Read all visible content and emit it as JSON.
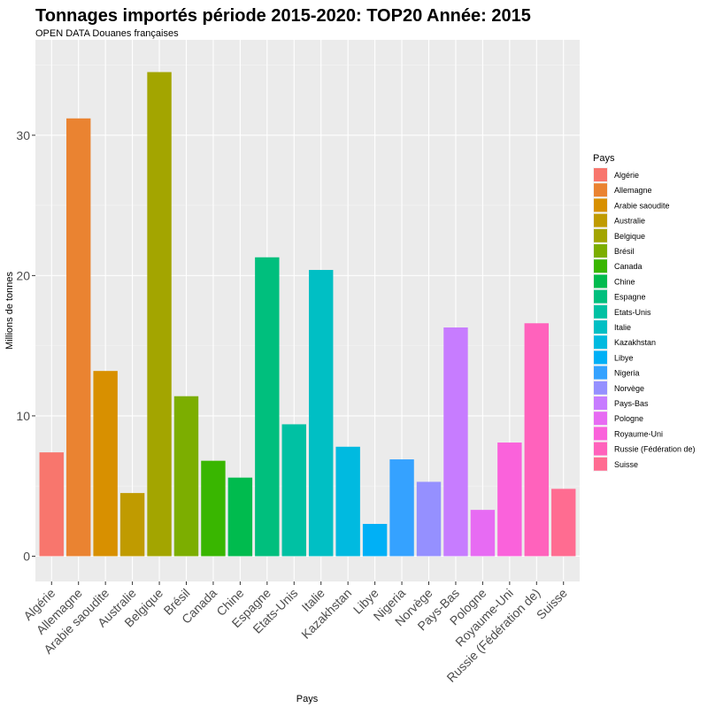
{
  "chart_data": {
    "type": "bar",
    "title": "Tonnages importés période 2015-2020: TOP20 Année: 2015",
    "subtitle": "OPEN DATA Douanes françaises",
    "xlabel": "Pays",
    "ylabel": "Millions de tonnes",
    "ylim": [
      -1.8,
      36.8
    ],
    "y_ticks": [
      0,
      10,
      20,
      30
    ],
    "grid": true,
    "legend_title": "Pays",
    "legend_position": "right",
    "categories": [
      "Algérie",
      "Allemagne",
      "Arabie saoudite",
      "Australie",
      "Belgique",
      "Brésil",
      "Canada",
      "Chine",
      "Espagne",
      "Etats-Unis",
      "Italie",
      "Kazakhstan",
      "Libye",
      "Nigeria",
      "Norvège",
      "Pays-Bas",
      "Pologne",
      "Royaume-Uni",
      "Russie (Fédération de)",
      "Suisse"
    ],
    "values": [
      7.4,
      31.2,
      13.2,
      4.5,
      34.5,
      11.4,
      6.8,
      5.6,
      21.3,
      9.4,
      20.4,
      7.8,
      2.3,
      6.9,
      5.3,
      16.3,
      3.3,
      8.1,
      16.6,
      4.8
    ],
    "colors": [
      "#F8766D",
      "#EA8331",
      "#D89000",
      "#C09B00",
      "#A3A500",
      "#7CAE00",
      "#39B600",
      "#00BB4E",
      "#00BF7D",
      "#00C1A3",
      "#00BFC4",
      "#00BAE0",
      "#00B0F6",
      "#35A2FF",
      "#9590FF",
      "#C77CFF",
      "#E76BF3",
      "#FA62DB",
      "#FF62BC",
      "#FF6C91"
    ]
  }
}
